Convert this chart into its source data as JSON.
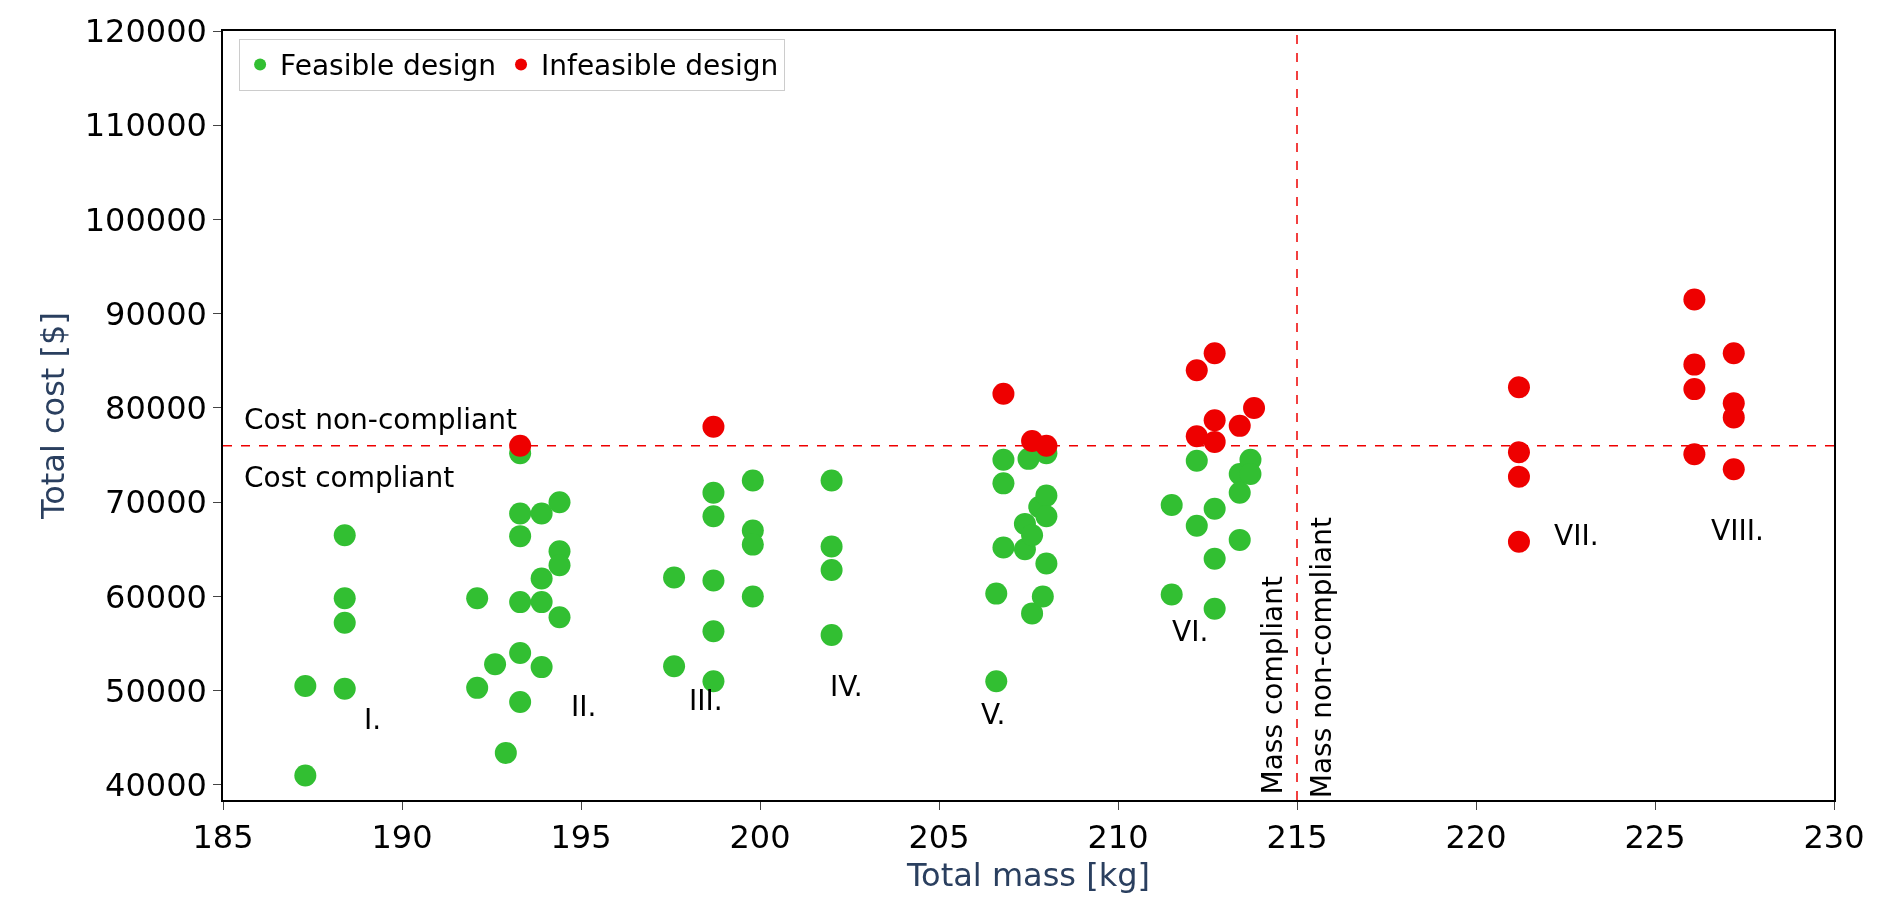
{
  "chart_data": {
    "type": "scatter",
    "xlabel": "Total mass [kg]",
    "ylabel": "Total cost [$]",
    "xlim": [
      185,
      230
    ],
    "xticks": [
      185,
      190,
      195,
      200,
      205,
      210,
      215,
      220,
      225,
      230
    ],
    "ylim": [
      38400,
      120000
    ],
    "yticks": [
      40000,
      50000,
      60000,
      70000,
      80000,
      90000,
      100000,
      110000,
      120000
    ],
    "legend": "top left",
    "marker": "circle",
    "series": [
      {
        "name": "Feasible design",
        "color": "#32bf32",
        "x": [
          187.3,
          187.3,
          188.4,
          188.4,
          188.4,
          188.4,
          192.1,
          192.1,
          192.6,
          192.9,
          193.3,
          193.3,
          193.3,
          193.3,
          193.3,
          193.3,
          193.9,
          193.9,
          193.9,
          193.9,
          194.4,
          194.4,
          194.4,
          194.4,
          197.6,
          197.6,
          198.7,
          198.7,
          198.7,
          198.7,
          198.7,
          199.8,
          199.8,
          199.8,
          199.8,
          202,
          202,
          202,
          202,
          206.6,
          206.6,
          206.8,
          206.8,
          206.8,
          207.5,
          207.4,
          207.4,
          207.6,
          207.9,
          207.8,
          208,
          208,
          208,
          207.6,
          208,
          211.5,
          211.5,
          212.2,
          212.2,
          212.7,
          212.7,
          212.7,
          213.4,
          213.4,
          213.4,
          213.7,
          213.7
        ],
        "values": [
          50500,
          41000,
          66500,
          59800,
          57200,
          50200,
          59800,
          50300,
          52800,
          43400,
          75200,
          68800,
          66400,
          59400,
          54000,
          48800,
          68800,
          61900,
          59400,
          52500,
          70000,
          64800,
          63300,
          57800,
          62000,
          52600,
          71000,
          68500,
          61700,
          56300,
          51000,
          72300,
          67000,
          65500,
          60000,
          72300,
          65300,
          62800,
          55900,
          60300,
          51000,
          74500,
          72000,
          65200,
          74600,
          67700,
          65000,
          58200,
          60000,
          69500,
          70700,
          68500,
          63500,
          66500,
          75200,
          69700,
          60200,
          74400,
          67500,
          69300,
          64000,
          58700,
          73000,
          71000,
          66000,
          74500,
          73000
        ]
      },
      {
        "name": "Infeasible design",
        "color": "#ee0000",
        "x": [
          193.3,
          198.7,
          206.8,
          207.6,
          208,
          212.2,
          212.7,
          212.2,
          212.7,
          212.7,
          213.4,
          213.8,
          221.2,
          221.2,
          221.2,
          221.2,
          226.1,
          226.1,
          226.1,
          226.1,
          227.2,
          227.2,
          227.2,
          227.2
        ],
        "values": [
          76000,
          78000,
          81500,
          76500,
          76000,
          84000,
          85800,
          77000,
          78700,
          76400,
          78100,
          80000,
          82200,
          75300,
          72700,
          65800,
          91500,
          84600,
          82000,
          75100,
          85800,
          80500,
          79000,
          73500
        ]
      }
    ],
    "ref_lines": [
      {
        "axis": "y",
        "value": 76000,
        "color": "#ee0000",
        "line_style": "dashed"
      },
      {
        "axis": "x",
        "value": 215,
        "color": "#ee0000",
        "line_style": "dashed"
      }
    ],
    "annotations": [
      "Cost non-compliant",
      "Cost compliant",
      {
        "text": "Mass compliant",
        "x": 215,
        "y": 50500
      },
      {
        "text": "Mass non-compliant",
        "x": 215,
        "y": 53500
      },
      "I.",
      "II.",
      "III.",
      "IV.",
      "V.",
      "VI.",
      "VII.",
      "VIII."
    ]
  }
}
